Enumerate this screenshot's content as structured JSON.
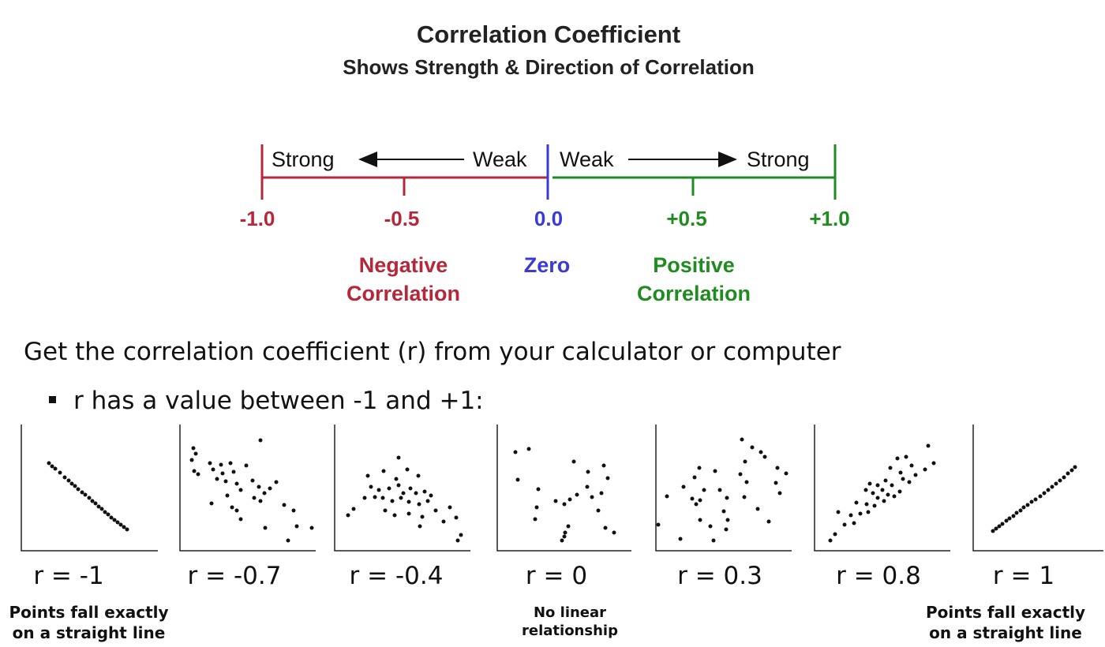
{
  "title": "Correlation Coefficient",
  "subtitle": "Shows Strength & Direction of Correlation",
  "scale": {
    "strong_left": "Strong",
    "weak_left": "Weak",
    "weak_right": "Weak",
    "strong_right": "Strong",
    "ticks": [
      "-1.0",
      "-0.5",
      "0.0",
      "+0.5",
      "+1.0"
    ],
    "negative_label_1": "Negative",
    "negative_label_2": "Correlation",
    "zero_label": "Zero",
    "positive_label_1": "Positive",
    "positive_label_2": "Correlation",
    "colors": {
      "negative": "#b5283a",
      "zero": "#3a3ad6",
      "positive": "#1f8c1f"
    }
  },
  "intro_text": "Get the correlation coefficient (r) from your calculator or computer",
  "bullet_text": "r has a value between -1 and +1:",
  "plots": [
    {
      "label": "r = -1"
    },
    {
      "label": "r = -0.7"
    },
    {
      "label": "r = -0.4"
    },
    {
      "label": "r = 0"
    },
    {
      "label": "r = 0.3"
    },
    {
      "label": "r = 0.8"
    },
    {
      "label": "r = 1"
    }
  ],
  "notes": {
    "left": "Points fall exactly on a straight line",
    "middle": "No linear relationship",
    "right": "Points fall exactly on a straight line"
  }
}
